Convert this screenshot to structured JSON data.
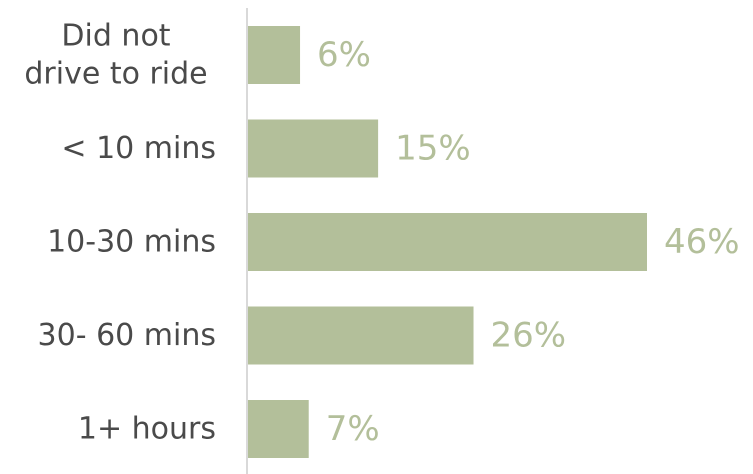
{
  "chart_data": {
    "type": "bar",
    "orientation": "horizontal",
    "categories": [
      [
        "Did not",
        "drive to ride"
      ],
      [
        "< 10 mins"
      ],
      [
        "10-30 mins"
      ],
      [
        "30- 60 mins"
      ],
      [
        "1+ hours"
      ]
    ],
    "values": [
      6,
      15,
      46,
      26,
      7
    ],
    "value_labels": [
      "6%",
      "15%",
      "46%",
      "26%",
      "7%"
    ],
    "title": "",
    "xlabel": "",
    "ylabel": "",
    "xlim": [
      0,
      46
    ],
    "grid": false,
    "legend": false,
    "colors": {
      "bar": "#b3bf9a",
      "value_label": "#b3bf9a",
      "category_label": "#4a4a4a",
      "axis": "#d9d9d9"
    }
  }
}
